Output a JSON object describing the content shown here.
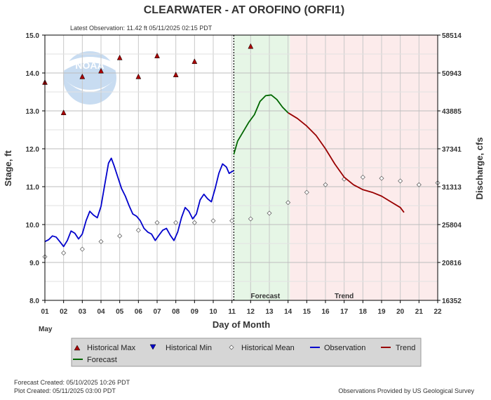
{
  "chart_data": {
    "type": "line",
    "title": "CLEARWATER - AT OROFINO  (ORFI1)",
    "subtitle": "Latest Observation: 11.42 ft 05/11/2025 02:15 PDT",
    "xlabel": "Day of Month",
    "xlabel_month": "May",
    "ylabel_left": "Stage, ft",
    "ylabel_right": "Discharge, cfs",
    "xlim": [
      1,
      22
    ],
    "ylim": [
      8.0,
      15.0
    ],
    "x_ticks": [
      "01",
      "02",
      "03",
      "04",
      "05",
      "06",
      "07",
      "08",
      "09",
      "10",
      "11",
      "12",
      "13",
      "14",
      "15",
      "16",
      "17",
      "18",
      "19",
      "20",
      "21",
      "22"
    ],
    "y_ticks_left": [
      "8.0",
      "9.0",
      "10.0",
      "11.0",
      "12.0",
      "13.0",
      "14.0",
      "15.0"
    ],
    "y_ticks_right": [
      {
        "stage": 8.0,
        "label": "16352"
      },
      {
        "stage": 9.0,
        "label": "20816"
      },
      {
        "stage": 10.0,
        "label": "25804"
      },
      {
        "stage": 11.0,
        "label": "31313"
      },
      {
        "stage": 12.0,
        "label": "37341"
      },
      {
        "stage": 13.0,
        "label": "43885"
      },
      {
        "stage": 14.0,
        "label": "50943"
      },
      {
        "stage": 15.0,
        "label": "58514"
      }
    ],
    "latest_observation_day": 11.1,
    "forecast_band": {
      "start": 11.1,
      "end": 14.1,
      "label": "Forecast",
      "color": "#e6f6e6"
    },
    "trend_band": {
      "start": 14.1,
      "end": 22.0,
      "label": "Trend",
      "color": "#fcebeb"
    },
    "grid": true,
    "series": [
      {
        "name": "Historical Max",
        "kind": "marker-triangle-up",
        "color": "#aa0000",
        "points": [
          [
            1,
            13.75
          ],
          [
            2,
            12.95
          ],
          [
            3,
            13.9
          ],
          [
            4,
            14.05
          ],
          [
            5,
            14.4
          ],
          [
            6,
            13.9
          ],
          [
            7,
            14.45
          ],
          [
            8,
            13.95
          ],
          [
            9,
            14.3
          ],
          [
            12,
            14.7
          ]
        ]
      },
      {
        "name": "Historical Min",
        "kind": "marker-triangle-down",
        "color": "#0000cc",
        "points": []
      },
      {
        "name": "Historical Mean",
        "kind": "marker-diamond",
        "color": "#888888",
        "points": [
          [
            1,
            9.15
          ],
          [
            2,
            9.25
          ],
          [
            3,
            9.35
          ],
          [
            4,
            9.55
          ],
          [
            5,
            9.7
          ],
          [
            6,
            9.85
          ],
          [
            7,
            10.05
          ],
          [
            8,
            10.05
          ],
          [
            9,
            10.05
          ],
          [
            10,
            10.1
          ],
          [
            11,
            10.1
          ],
          [
            12,
            10.15
          ],
          [
            13,
            10.3
          ],
          [
            14,
            10.58
          ],
          [
            15,
            10.85
          ],
          [
            16,
            11.05
          ],
          [
            17,
            11.2
          ],
          [
            18,
            11.25
          ],
          [
            19,
            11.22
          ],
          [
            20,
            11.15
          ],
          [
            21,
            11.05
          ],
          [
            22,
            11.1
          ]
        ]
      },
      {
        "name": "Observation",
        "kind": "line",
        "color": "#0000cc",
        "points": [
          [
            1,
            9.55
          ],
          [
            1.2,
            9.6
          ],
          [
            1.4,
            9.7
          ],
          [
            1.6,
            9.67
          ],
          [
            1.8,
            9.55
          ],
          [
            2,
            9.42
          ],
          [
            2.2,
            9.58
          ],
          [
            2.4,
            9.83
          ],
          [
            2.6,
            9.77
          ],
          [
            2.8,
            9.62
          ],
          [
            3,
            9.75
          ],
          [
            3.2,
            10.1
          ],
          [
            3.4,
            10.35
          ],
          [
            3.6,
            10.25
          ],
          [
            3.8,
            10.18
          ],
          [
            4,
            10.48
          ],
          [
            4.2,
            11.05
          ],
          [
            4.4,
            11.62
          ],
          [
            4.55,
            11.75
          ],
          [
            4.7,
            11.55
          ],
          [
            4.9,
            11.25
          ],
          [
            5.1,
            10.95
          ],
          [
            5.3,
            10.75
          ],
          [
            5.5,
            10.5
          ],
          [
            5.7,
            10.28
          ],
          [
            5.9,
            10.22
          ],
          [
            6.1,
            10.1
          ],
          [
            6.3,
            9.9
          ],
          [
            6.5,
            9.8
          ],
          [
            6.7,
            9.75
          ],
          [
            6.9,
            9.58
          ],
          [
            7.1,
            9.72
          ],
          [
            7.3,
            9.85
          ],
          [
            7.5,
            9.9
          ],
          [
            7.7,
            9.72
          ],
          [
            7.9,
            9.58
          ],
          [
            8.1,
            9.8
          ],
          [
            8.3,
            10.18
          ],
          [
            8.5,
            10.45
          ],
          [
            8.7,
            10.35
          ],
          [
            8.9,
            10.15
          ],
          [
            9.1,
            10.28
          ],
          [
            9.3,
            10.65
          ],
          [
            9.5,
            10.8
          ],
          [
            9.7,
            10.68
          ],
          [
            9.9,
            10.6
          ],
          [
            10.1,
            10.95
          ],
          [
            10.3,
            11.35
          ],
          [
            10.5,
            11.6
          ],
          [
            10.7,
            11.52
          ],
          [
            10.85,
            11.35
          ],
          [
            11.0,
            11.4
          ],
          [
            11.1,
            11.42
          ]
        ]
      },
      {
        "name": "Trend",
        "kind": "line",
        "color": "#990000",
        "points": [
          [
            14.0,
            12.95
          ],
          [
            14.5,
            12.8
          ],
          [
            15.0,
            12.6
          ],
          [
            15.5,
            12.35
          ],
          [
            16.0,
            12.0
          ],
          [
            16.5,
            11.6
          ],
          [
            17.0,
            11.25
          ],
          [
            17.5,
            11.05
          ],
          [
            18.0,
            10.92
          ],
          [
            18.5,
            10.85
          ],
          [
            19.0,
            10.75
          ],
          [
            19.5,
            10.6
          ],
          [
            20.0,
            10.45
          ],
          [
            20.2,
            10.32
          ]
        ]
      },
      {
        "name": "Forecast",
        "kind": "line",
        "color": "#006600",
        "points": [
          [
            11.1,
            11.85
          ],
          [
            11.3,
            12.2
          ],
          [
            11.6,
            12.45
          ],
          [
            11.9,
            12.7
          ],
          [
            12.2,
            12.9
          ],
          [
            12.5,
            13.25
          ],
          [
            12.8,
            13.4
          ],
          [
            13.1,
            13.42
          ],
          [
            13.4,
            13.3
          ],
          [
            13.7,
            13.1
          ],
          [
            14.0,
            12.95
          ]
        ]
      }
    ]
  },
  "footer": {
    "forecast_created": "Forecast Created: 05/10/2025 10:26 PDT",
    "plot_created": "Plot Created: 05/11/2025 03:00 PDT",
    "provider": "Observations Provided by US Geological Survey"
  },
  "logo_text": "NOAA"
}
